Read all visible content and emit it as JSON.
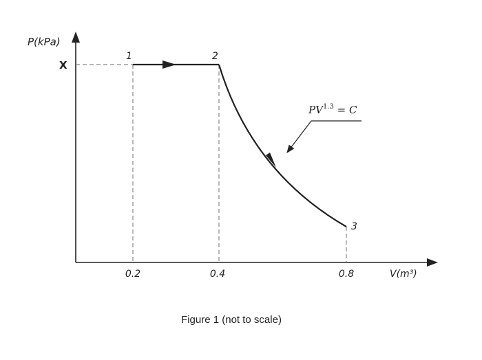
{
  "axes": {
    "y_label": "P(kPa)",
    "x_label": "V(m³)",
    "y_marker": "X",
    "x_labels": [
      "0.2",
      "0.4",
      "0.8"
    ]
  },
  "points": [
    {
      "label": "1"
    },
    {
      "label": "2"
    },
    {
      "label": "3"
    }
  ],
  "process": {
    "base": "PV",
    "exponent": "1.3",
    "rest": " = C"
  },
  "caption": "Figure 1 (not to scale)"
}
